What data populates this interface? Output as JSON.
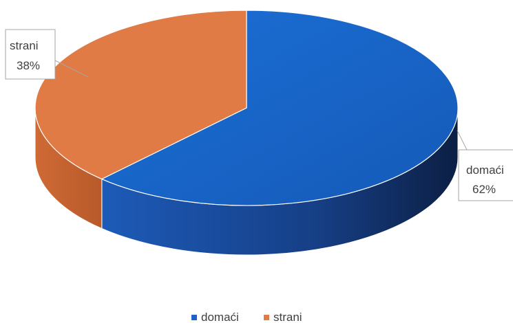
{
  "chart_data": {
    "type": "pie",
    "style": "3d",
    "categories": [
      "domaći",
      "strani"
    ],
    "values": [
      62,
      38
    ],
    "labels": [
      "62%",
      "38%"
    ],
    "colors": [
      "#1a63c8",
      "#e07b45"
    ],
    "legend": {
      "placement": "bottom",
      "entries": [
        "domaći",
        "strani"
      ]
    },
    "title": ""
  }
}
